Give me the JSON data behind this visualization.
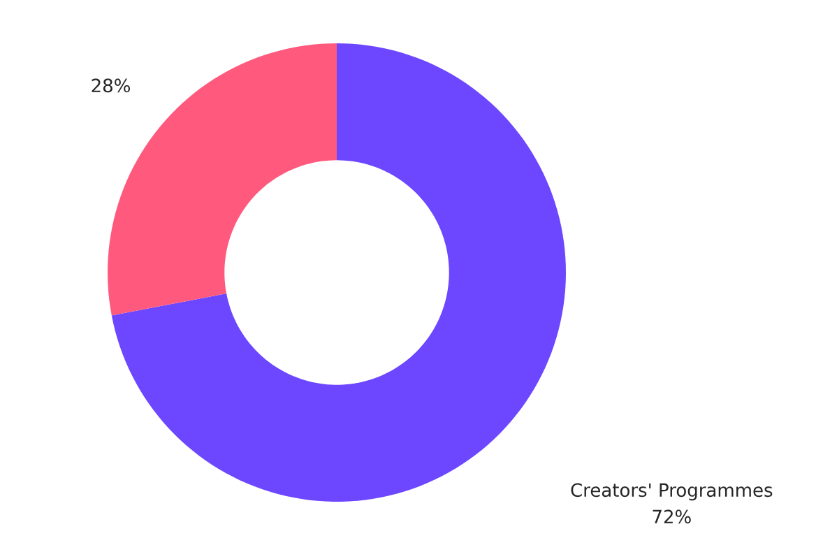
{
  "chart_data": {
    "type": "donut",
    "categories": [
      "Creators' Programmes",
      null
    ],
    "values": [
      72,
      28
    ],
    "value_labels": [
      "72%",
      "28%"
    ],
    "colors": [
      "#6c47ff",
      "#ff5a7e"
    ]
  }
}
